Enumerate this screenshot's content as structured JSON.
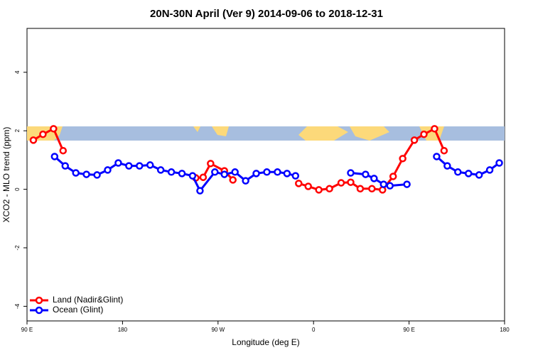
{
  "chart_data": {
    "type": "line",
    "title": "20N-30N April (Ver 9)   2014-09-06 to 2018-12-31",
    "x_label": "Longitude (deg E)",
    "y_label": "XCO2 - MLO trend (ppm)",
    "xlim": [
      90,
      540
    ],
    "xticks": [
      {
        "value": 90,
        "label": "90 E"
      },
      180,
      {
        "value": 270,
        "label": "90 W"
      },
      {
        "value": 360,
        "label": "0"
      },
      {
        "value": 450,
        "label": "90 E"
      },
      {
        "value": 540,
        "label": "180"
      }
    ],
    "ylim": [
      -4.5,
      5.5
    ],
    "yticks": [
      -4,
      -2,
      0,
      2,
      4
    ],
    "legend": "bottom-left",
    "series": [
      {
        "name": "Land (Nadir&Glint)",
        "color": "#ff0000",
        "x": [
          96,
          105,
          115,
          124,
          185,
          249,
          256,
          263,
          276,
          284,
          315,
          346,
          355,
          365,
          375,
          386,
          395,
          404,
          415,
          425,
          435,
          444,
          455,
          464,
          474,
          483
        ],
        "values": [
          1.68,
          1.88,
          2.07,
          1.32,
          null,
          0.39,
          0.41,
          0.88,
          0.63,
          0.32,
          null,
          0.2,
          0.1,
          -0.02,
          0.02,
          0.22,
          0.24,
          0.02,
          0.02,
          -0.02,
          0.44,
          1.05,
          1.68,
          1.88,
          2.07,
          1.32
        ]
      },
      {
        "name": "Ocean (Glint)",
        "color": "#0000ff",
        "x": [
          116,
          126,
          136,
          146,
          156,
          166,
          176,
          186,
          196,
          206,
          216,
          226,
          236,
          246,
          253,
          267,
          276,
          286,
          296,
          306,
          316,
          326,
          335,
          343,
          370,
          395,
          409,
          417,
          426,
          432,
          448,
          462,
          476,
          486,
          496,
          506,
          516,
          526,
          535
        ],
        "values": [
          1.12,
          0.8,
          0.56,
          0.51,
          0.49,
          0.66,
          0.9,
          0.8,
          0.8,
          0.83,
          0.66,
          0.59,
          0.54,
          0.46,
          -0.05,
          0.59,
          0.51,
          0.59,
          0.29,
          0.54,
          0.59,
          0.59,
          0.54,
          0.46,
          null,
          0.56,
          0.51,
          0.37,
          0.17,
          0.12,
          0.17,
          null,
          1.12,
          0.8,
          0.59,
          0.54,
          0.49,
          0.66,
          0.9
        ]
      }
    ]
  }
}
